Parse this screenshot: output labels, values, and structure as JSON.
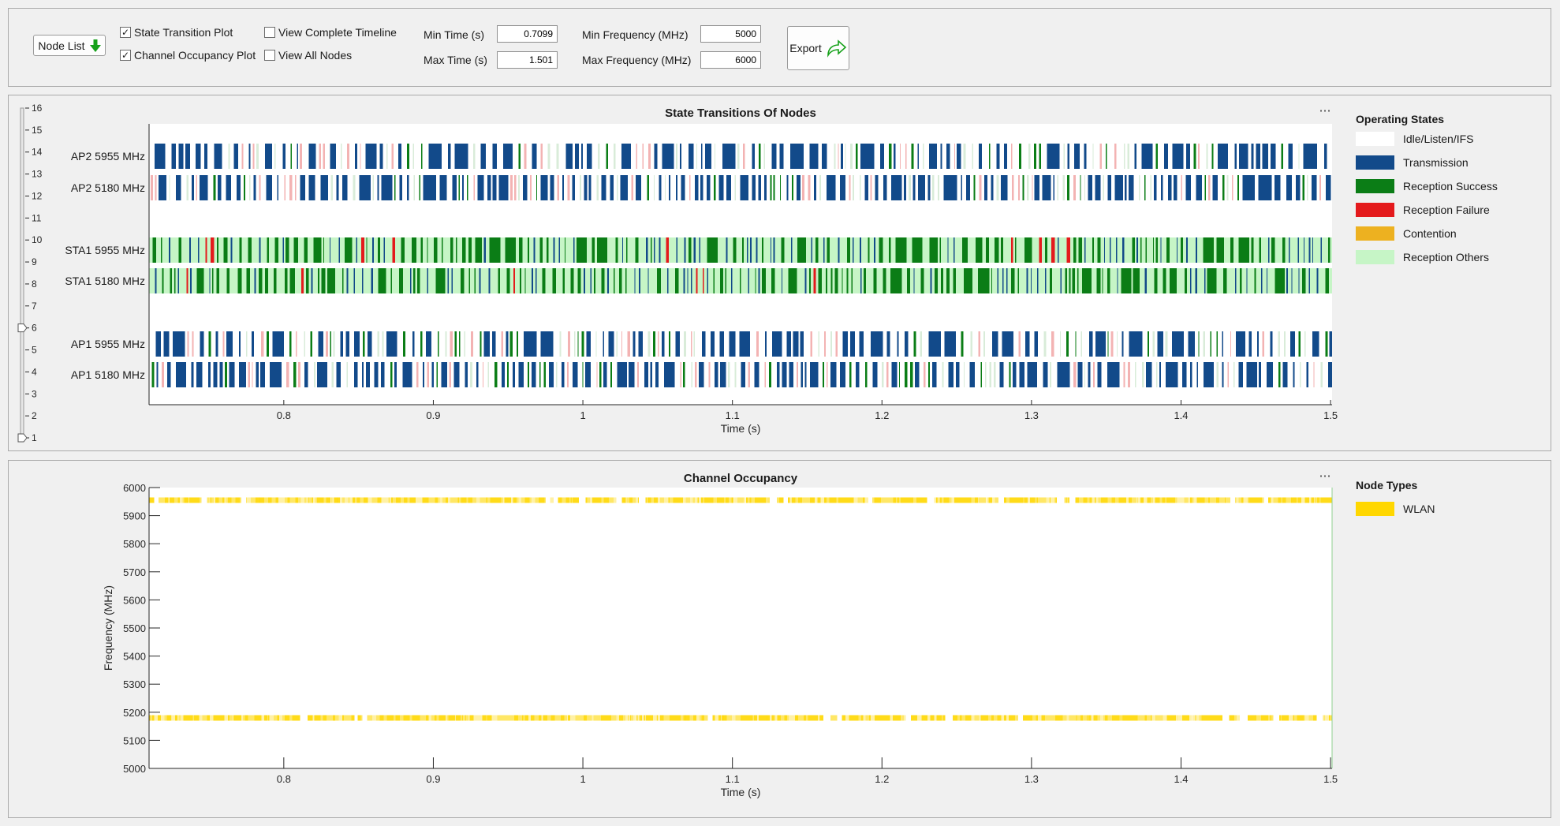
{
  "toolbar": {
    "node_list_label": "Node List",
    "state_transition_label": "State Transition Plot",
    "state_transition_checked": true,
    "channel_occupancy_label": "Channel Occupancy Plot",
    "channel_occupancy_checked": true,
    "complete_timeline_label": "View Complete Timeline",
    "complete_timeline_checked": false,
    "all_nodes_label": "View All Nodes",
    "all_nodes_checked": false,
    "min_time_label": "Min Time (s)",
    "min_time_value": "0.7099",
    "max_time_label": "Max Time (s)",
    "max_time_value": "1.501",
    "min_freq_label": "Min Frequency (MHz)",
    "min_freq_value": "5000",
    "max_freq_label": "Max Frequency (MHz)",
    "max_freq_value": "6000",
    "export_label": "Export",
    "check_glyph": "✓"
  },
  "states_legend": {
    "title": "Operating States",
    "items": [
      {
        "label": "Idle/Listen/IFS",
        "color": "#ffffff"
      },
      {
        "label": "Transmission",
        "color": "#124a8a"
      },
      {
        "label": "Reception Success",
        "color": "#0b7d16"
      },
      {
        "label": "Reception Failure",
        "color": "#e41a1c"
      },
      {
        "label": "Contention",
        "color": "#edb120"
      },
      {
        "label": "Reception Others",
        "color": "#c6f5c6"
      }
    ]
  },
  "channel_legend": {
    "title": "Node Types",
    "items": [
      {
        "label": "WLAN",
        "color": "#ffd700"
      }
    ]
  },
  "chart_data": [
    {
      "type": "timeline",
      "title": "State Transitions Of Nodes",
      "xlabel": "Time (s)",
      "xlim": [
        0.7099,
        1.501
      ],
      "xticks": [
        "0.8",
        "0.9",
        "1",
        "1.1",
        "1.2",
        "1.3",
        "1.4",
        "1.5"
      ],
      "slider_ticks": [
        "16",
        "15",
        "14",
        "13",
        "12",
        "11",
        "10",
        "9",
        "8",
        "7",
        "6",
        "5",
        "4",
        "3",
        "2",
        "1"
      ],
      "slider_value": 6,
      "rows": [
        {
          "label": "AP2 5955 MHz",
          "background": "idle",
          "density": 0.5
        },
        {
          "label": "AP2 5180 MHz",
          "background": "idle",
          "density": 0.72
        },
        {
          "label": "STA1 5955 MHz",
          "background": "reception_others",
          "density": 0.55
        },
        {
          "label": "STA1 5180 MHz",
          "background": "reception_others",
          "density": 0.55
        },
        {
          "label": "AP1 5955 MHz",
          "background": "idle",
          "density": 0.5
        },
        {
          "label": "AP1 5180 MHz",
          "background": "idle",
          "density": 0.68
        }
      ]
    },
    {
      "type": "timeline",
      "title": "Channel Occupancy",
      "xlabel": "Time (s)",
      "ylabel": "Frequency (MHz)",
      "xlim": [
        0.7099,
        1.501
      ],
      "ylim": [
        5000,
        6000
      ],
      "xticks": [
        "0.8",
        "0.9",
        "1",
        "1.1",
        "1.2",
        "1.3",
        "1.4",
        "1.5"
      ],
      "yticks": [
        "6000",
        "5900",
        "5800",
        "5700",
        "5600",
        "5500",
        "5400",
        "5300",
        "5200",
        "5100",
        "5000"
      ],
      "bands": [
        {
          "center_mhz": 5955,
          "width_mhz": 20,
          "node_type": "WLAN"
        },
        {
          "center_mhz": 5180,
          "width_mhz": 20,
          "node_type": "WLAN"
        }
      ]
    }
  ]
}
